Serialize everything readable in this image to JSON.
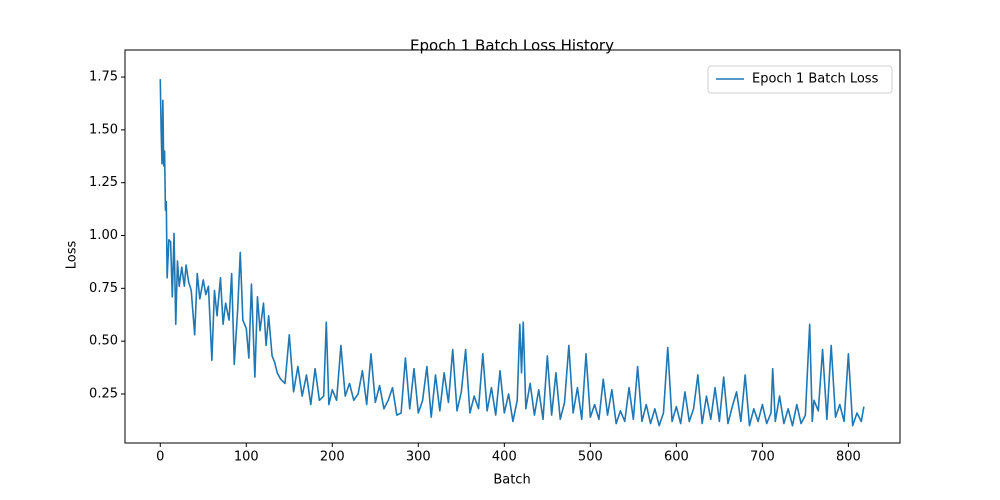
{
  "chart_data": {
    "type": "line",
    "title": "Epoch 1 Batch Loss History",
    "xlabel": "Batch",
    "ylabel": "Loss",
    "x": [
      0,
      1,
      2,
      3,
      4,
      5,
      6,
      7,
      8,
      10,
      12,
      14,
      16,
      18,
      20,
      22,
      25,
      28,
      30,
      33,
      36,
      40,
      43,
      46,
      50,
      53,
      56,
      60,
      63,
      66,
      70,
      73,
      76,
      80,
      83,
      86,
      90,
      93,
      96,
      100,
      103,
      106,
      110,
      113,
      116,
      120,
      123,
      126,
      130,
      133,
      136,
      140,
      145,
      150,
      155,
      160,
      165,
      170,
      175,
      180,
      185,
      190,
      193,
      196,
      200,
      205,
      210,
      215,
      220,
      225,
      230,
      235,
      240,
      245,
      250,
      255,
      260,
      265,
      270,
      275,
      280,
      285,
      290,
      295,
      300,
      305,
      310,
      315,
      320,
      325,
      330,
      335,
      340,
      345,
      350,
      355,
      360,
      365,
      370,
      375,
      380,
      385,
      390,
      395,
      400,
      405,
      410,
      415,
      418,
      420,
      422,
      425,
      430,
      435,
      440,
      445,
      450,
      455,
      460,
      465,
      470,
      475,
      480,
      485,
      490,
      495,
      500,
      505,
      510,
      515,
      520,
      525,
      530,
      535,
      540,
      545,
      550,
      555,
      560,
      565,
      570,
      575,
      580,
      585,
      590,
      595,
      600,
      605,
      610,
      615,
      620,
      625,
      630,
      635,
      640,
      645,
      650,
      655,
      660,
      665,
      670,
      675,
      680,
      685,
      690,
      695,
      700,
      705,
      710,
      712,
      715,
      720,
      725,
      730,
      735,
      740,
      745,
      750,
      755,
      758,
      760,
      765,
      770,
      775,
      780,
      785,
      790,
      795,
      800,
      805,
      810,
      815,
      818
    ],
    "series": [
      {
        "name": "Epoch 1 Batch Loss",
        "color": "#1f77b4",
        "values": [
          1.74,
          1.5,
          1.34,
          1.64,
          1.33,
          1.4,
          1.12,
          1.16,
          0.8,
          0.98,
          0.97,
          0.71,
          1.01,
          0.58,
          0.88,
          0.76,
          0.85,
          0.76,
          0.86,
          0.78,
          0.74,
          0.53,
          0.82,
          0.7,
          0.79,
          0.72,
          0.76,
          0.41,
          0.74,
          0.62,
          0.8,
          0.58,
          0.68,
          0.6,
          0.82,
          0.39,
          0.65,
          0.92,
          0.6,
          0.56,
          0.42,
          0.77,
          0.33,
          0.71,
          0.55,
          0.68,
          0.48,
          0.62,
          0.43,
          0.4,
          0.35,
          0.32,
          0.3,
          0.53,
          0.26,
          0.38,
          0.24,
          0.34,
          0.2,
          0.37,
          0.22,
          0.24,
          0.59,
          0.2,
          0.27,
          0.22,
          0.48,
          0.24,
          0.3,
          0.22,
          0.25,
          0.36,
          0.2,
          0.44,
          0.21,
          0.29,
          0.18,
          0.22,
          0.28,
          0.15,
          0.16,
          0.42,
          0.18,
          0.37,
          0.16,
          0.22,
          0.38,
          0.14,
          0.34,
          0.17,
          0.35,
          0.21,
          0.46,
          0.17,
          0.26,
          0.46,
          0.16,
          0.24,
          0.18,
          0.44,
          0.17,
          0.28,
          0.15,
          0.36,
          0.16,
          0.25,
          0.12,
          0.22,
          0.58,
          0.35,
          0.59,
          0.18,
          0.3,
          0.15,
          0.27,
          0.13,
          0.43,
          0.15,
          0.35,
          0.13,
          0.21,
          0.48,
          0.16,
          0.28,
          0.13,
          0.44,
          0.14,
          0.2,
          0.13,
          0.32,
          0.15,
          0.27,
          0.11,
          0.17,
          0.12,
          0.28,
          0.13,
          0.38,
          0.12,
          0.2,
          0.11,
          0.18,
          0.1,
          0.16,
          0.47,
          0.12,
          0.19,
          0.11,
          0.26,
          0.12,
          0.18,
          0.34,
          0.11,
          0.24,
          0.13,
          0.28,
          0.12,
          0.33,
          0.11,
          0.19,
          0.26,
          0.12,
          0.34,
          0.1,
          0.18,
          0.12,
          0.2,
          0.11,
          0.16,
          0.37,
          0.12,
          0.24,
          0.11,
          0.18,
          0.1,
          0.2,
          0.11,
          0.15,
          0.58,
          0.12,
          0.22,
          0.17,
          0.46,
          0.13,
          0.48,
          0.14,
          0.2,
          0.12,
          0.44,
          0.1,
          0.16,
          0.12,
          0.19
        ]
      }
    ],
    "xlim": [
      -41,
      860
    ],
    "xticks": [
      0,
      100,
      200,
      300,
      400,
      500,
      600,
      700,
      800
    ],
    "ylim": [
      0.018,
      1.878
    ],
    "yticks": [
      0.25,
      {
        "value": 0.5,
        "label": "0.50"
      },
      0.75,
      {
        "value": 1.0,
        "label": "1.00"
      },
      1.25,
      {
        "value": 1.5,
        "label": "1.50"
      },
      1.75
    ],
    "legend": "upper right",
    "grid": false
  }
}
